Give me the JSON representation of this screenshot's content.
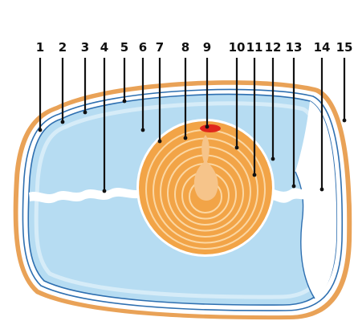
{
  "diagram": {
    "labels": [
      "1",
      "2",
      "3",
      "4",
      "5",
      "6",
      "7",
      "8",
      "9",
      "10",
      "11",
      "12",
      "13",
      "14",
      "15"
    ]
  },
  "colors": {
    "shell": "#e9a257",
    "membrane": "#2e6fb0",
    "albumen": "#b6dcf2",
    "albumen_light": "#d6ecf8",
    "yolk": "#f2a447",
    "yolk_ring": "#fbd7a3",
    "latebra": "#f6c48a",
    "germinal_disc": "#e0261c",
    "air_cell": "#ffffff",
    "chalaza": "#ffffff",
    "leader": "#111111"
  }
}
